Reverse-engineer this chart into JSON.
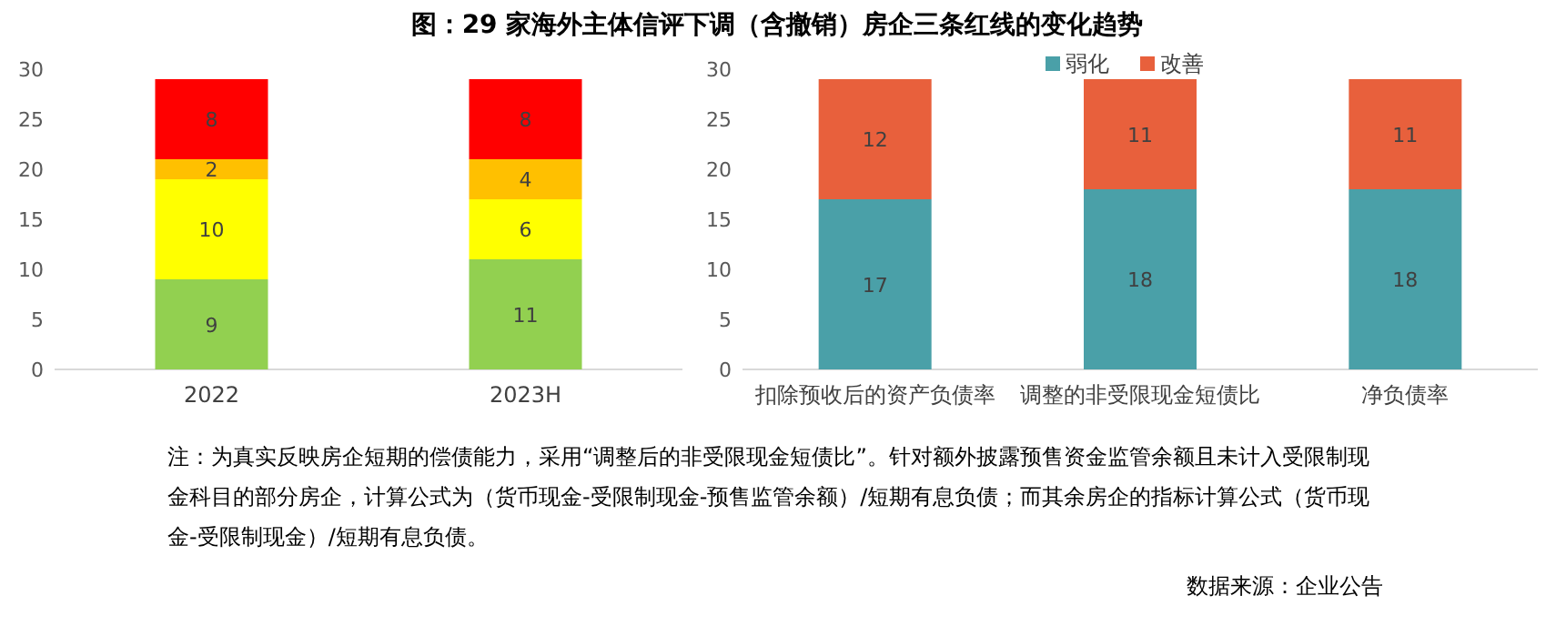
{
  "chart_data": [
    {
      "type": "bar",
      "title": "图：29 家海外主体信评下调（含撤销）房企三条红线的变化趋势",
      "categories": [
        "2022",
        "2023H"
      ],
      "stacked": true,
      "data_labels": true,
      "ylim": [
        0,
        30
      ],
      "yticks": [
        0,
        5,
        10,
        15,
        20,
        25,
        30
      ],
      "grid": false,
      "legend": false,
      "series": [
        {
          "color": "#92d050",
          "values": [
            9,
            11
          ]
        },
        {
          "color": "#ffff00",
          "values": [
            10,
            6
          ]
        },
        {
          "color": "#ffc000",
          "values": [
            2,
            4
          ]
        },
        {
          "color": "#ff0000",
          "values": [
            8,
            8
          ]
        }
      ],
      "annotations": [
        "注：为真实反映房企短期的偿债能力，采用“调整后的非受限现金短债比”。针对额外披露预售资金监管余额且未计入受限制现金科目的部分房企，计算公式为（货币现金-受限制现金-预售监管余额）/短期有息负债；而其余房企的指标计算公式（货币现金-受限制现金）/短期有息负债。",
        "数据来源：企业公告"
      ]
    },
    {
      "type": "bar",
      "categories": [
        "扣除预收后的资产负债率",
        "调整的非受限现金短债比",
        "净负债率"
      ],
      "stacked": true,
      "data_labels": true,
      "ylim": [
        0,
        30
      ],
      "yticks": [
        0,
        5,
        10,
        15,
        20,
        25,
        30
      ],
      "grid": false,
      "legend": "top",
      "series": [
        {
          "name": "弱化",
          "color": "#4aa0a8",
          "values": [
            17,
            18,
            18
          ]
        },
        {
          "name": "改善",
          "color": "#e8603c",
          "values": [
            12,
            11,
            11
          ]
        }
      ]
    }
  ]
}
